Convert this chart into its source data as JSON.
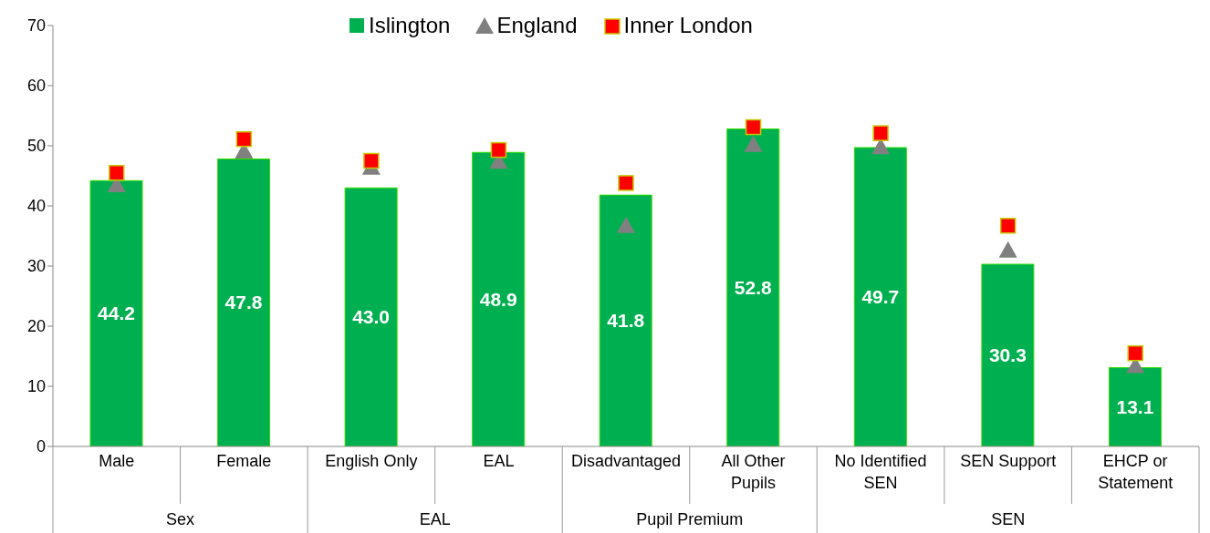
{
  "chart_data": {
    "type": "bar",
    "categories": [
      "Male",
      "Female",
      "English Only",
      "EAL",
      "Disadvantaged",
      "All Other Pupils",
      "No Identified SEN",
      "SEN Support",
      "EHCP or Statement"
    ],
    "series": [
      {
        "name": "Islington",
        "color": "#00b050",
        "values": [
          44.2,
          47.8,
          43.0,
          48.9,
          41.8,
          52.8,
          49.7,
          30.3,
          13.1
        ],
        "value_labels": [
          "44.2",
          "47.8",
          "43.0",
          "48.9",
          "41.8",
          "52.8",
          "49.7",
          "30.3",
          "13.1"
        ]
      },
      {
        "name": "England",
        "type": "scatter",
        "marker": "triangle",
        "color": "#808080",
        "values": [
          43.5,
          49.1,
          46.4,
          47.4,
          36.7,
          50.2,
          49.8,
          32.6,
          13.4
        ]
      },
      {
        "name": "Inner London",
        "type": "scatter",
        "marker": "square",
        "color": "#ff0000",
        "values": [
          45.5,
          51.1,
          47.5,
          49.3,
          43.8,
          53.1,
          52.1,
          36.7,
          15.5
        ]
      }
    ],
    "annotations": [
      "Sex",
      "EAL",
      "Pupil Premium",
      "SEN"
    ],
    "ylim": [
      0,
      70
    ],
    "yticks": [
      0,
      10,
      20,
      30,
      40,
      50,
      60,
      70
    ],
    "grid": false,
    "legend": "top"
  }
}
